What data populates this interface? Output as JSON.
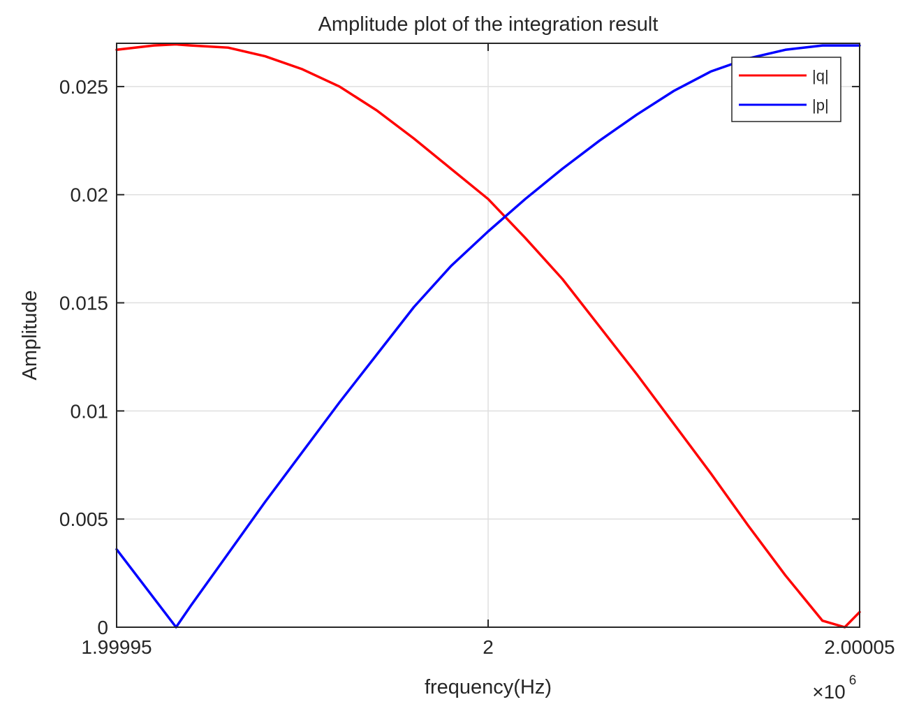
{
  "chart_data": {
    "type": "line",
    "title": "Amplitude plot of the integration result",
    "xlabel": "frequency(Hz)",
    "ylabel": "Amplitude",
    "x_multiplier_label": "×10",
    "x_multiplier_exponent": "6",
    "xlim": [
      1.99995,
      2.00005
    ],
    "ylim": [
      0,
      0.027
    ],
    "x_ticks": [
      1.99995,
      2,
      2.00005
    ],
    "x_tick_labels": [
      "1.99995",
      "2",
      "2.00005"
    ],
    "y_ticks": [
      0,
      0.005,
      0.01,
      0.015,
      0.02,
      0.025
    ],
    "y_tick_labels": [
      "0",
      "0.005",
      "0.01",
      "0.015",
      "0.02",
      "0.025"
    ],
    "grid": true,
    "legend_position": "top-right",
    "series": [
      {
        "name": "|q|",
        "color": "#ff0000",
        "x": [
          1.99995,
          1.999955,
          1.999958,
          1.99996,
          1.999965,
          1.99997,
          1.999975,
          1.99998,
          1.999985,
          1.99999,
          1.999995,
          2.0,
          2.000005,
          2.00001,
          2.000015,
          2.00002,
          2.000025,
          2.00003,
          2.000035,
          2.00004,
          2.000045,
          2.000048,
          2.00005
        ],
        "values": [
          0.0267,
          0.0269,
          0.02695,
          0.0269,
          0.0268,
          0.0264,
          0.0258,
          0.025,
          0.0239,
          0.0226,
          0.0212,
          0.0198,
          0.018,
          0.0161,
          0.0139,
          0.0117,
          0.0094,
          0.0071,
          0.0047,
          0.0024,
          0.0003,
          0.0,
          0.0007
        ]
      },
      {
        "name": "|p|",
        "color": "#0000ff",
        "x": [
          1.99995,
          1.999958,
          1.99996,
          1.999965,
          1.99997,
          1.999975,
          1.99998,
          1.999985,
          1.99999,
          1.999995,
          2.0,
          2.000005,
          2.00001,
          2.000015,
          2.00002,
          2.000025,
          2.00003,
          2.000035,
          2.00004,
          2.000045,
          2.00005
        ],
        "values": [
          0.0036,
          0.0,
          0.001,
          0.0034,
          0.0058,
          0.0081,
          0.0104,
          0.0126,
          0.0148,
          0.0167,
          0.0183,
          0.0198,
          0.0212,
          0.0225,
          0.0237,
          0.0248,
          0.0257,
          0.0263,
          0.0267,
          0.0269,
          0.0269
        ]
      }
    ]
  }
}
